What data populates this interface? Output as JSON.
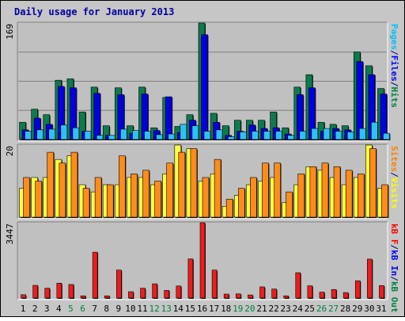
{
  "chart_data": {
    "type": "bar",
    "title": "Daily usage for January 2013",
    "categories": [
      "1",
      "2",
      "3",
      "4",
      "5",
      "6",
      "7",
      "8",
      "9",
      "10",
      "11",
      "12",
      "13",
      "14",
      "15",
      "16",
      "17",
      "18",
      "19",
      "20",
      "21",
      "22",
      "23",
      "24",
      "25",
      "26",
      "27",
      "28",
      "29",
      "30",
      "31"
    ],
    "weekend_days": [
      "5",
      "6",
      "12",
      "13",
      "19",
      "20",
      "26",
      "27"
    ],
    "panels": [
      {
        "id": "hits-files-pages",
        "max_label": "169",
        "ylim": [
          0,
          169
        ],
        "axis_label": [
          {
            "text": "Pages",
            "color": "#00c0ff"
          },
          {
            "text": "/",
            "color": "#000080"
          },
          {
            "text": "Files",
            "color": "#0000ff"
          },
          {
            "text": "/",
            "color": "#000080"
          },
          {
            "text": "Hits",
            "color": "#008040"
          }
        ],
        "series": [
          {
            "name": "Hits",
            "color": "#0e7a4e",
            "values": [
              25,
              44,
              36,
              86,
              88,
              40,
              76,
              20,
              75,
              20,
              76,
              17,
              61,
              19,
              36,
              169,
              38,
              20,
              28,
              28,
              28,
              40,
              17,
              76,
              94,
              25,
              22,
              20,
              127,
              107,
              74
            ]
          },
          {
            "name": "Files",
            "color": "#0000e0",
            "values": [
              14,
              31,
              22,
              77,
              75,
              12,
              67,
              6,
              65,
              9,
              66,
              13,
              62,
              10,
              28,
              152,
              25,
              6,
              12,
              21,
              16,
              17,
              8,
              65,
              75,
              12,
              16,
              14,
              113,
              94,
              66
            ]
          },
          {
            "name": "Pages",
            "color": "#30c0f8",
            "values": [
              12,
              14,
              15,
              21,
              17,
              12,
              6,
              6,
              15,
              13,
              12,
              7,
              8,
              22,
              20,
              12,
              14,
              4,
              11,
              12,
              12,
              12,
              6,
              12,
              16,
              16,
              12,
              11,
              16,
              25,
              9
            ]
          }
        ]
      },
      {
        "id": "visits-sites",
        "max_label": "20",
        "ylim": [
          0,
          20
        ],
        "axis_label": [
          {
            "text": "Sites",
            "color": "#ff8000"
          },
          {
            "text": "/",
            "color": "#000080"
          },
          {
            "text": "Visits",
            "color": "#ffff00"
          }
        ],
        "series": [
          {
            "name": "Visits",
            "color": "#ffff40",
            "values": [
              8,
              11,
              11,
              16,
              17,
              9,
              7,
              9,
              9,
              11,
              11,
              9,
              12,
              20,
              19,
              10,
              12,
              3,
              6,
              9,
              10,
              11,
              4,
              9,
              14,
              13,
              11,
              9,
              11,
              20,
              8
            ]
          },
          {
            "name": "Sites",
            "color": "#ff8c1a",
            "values": [
              11,
              10,
              18,
              15,
              18,
              8,
              11,
              9,
              17,
              12,
              13,
              10,
              15,
              18,
              19,
              11,
              16,
              5,
              8,
              11,
              15,
              15,
              7,
              12,
              14,
              15,
              14,
              13,
              12,
              19,
              9
            ]
          }
        ]
      },
      {
        "id": "kbytes",
        "max_label": "3447",
        "ylim": [
          0,
          3447
        ],
        "axis_label": [
          {
            "text": "kB F",
            "color": "#ff0000"
          },
          {
            "text": "/",
            "color": "#000080"
          },
          {
            "text": "kB In",
            "color": "#0000ff"
          },
          {
            "text": "/",
            "color": "#000080"
          },
          {
            "text": "kB Out",
            "color": "#008040"
          }
        ],
        "series": [
          {
            "name": "kB F",
            "color": "#ee1c1c",
            "values": [
              150,
              580,
              450,
              680,
              620,
              100,
              2100,
              100,
              1280,
              290,
              450,
              650,
              350,
              550,
              1790,
              3447,
              1280,
              180,
              190,
              140,
              510,
              410,
              100,
              1160,
              560,
              270,
              390,
              250,
              790,
              1780,
              570
            ]
          }
        ]
      }
    ]
  }
}
